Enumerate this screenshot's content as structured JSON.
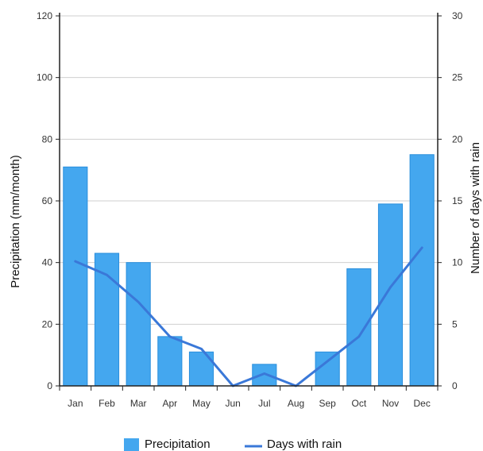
{
  "chart_data": {
    "type": "bar",
    "categories": [
      "Jan",
      "Feb",
      "Mar",
      "Apr",
      "May",
      "Jun",
      "Jul",
      "Aug",
      "Sep",
      "Oct",
      "Nov",
      "Dec"
    ],
    "series": [
      {
        "name": "Precipitation",
        "type": "bar",
        "axis": "left",
        "values": [
          71,
          43,
          40,
          16,
          11,
          0,
          7,
          0,
          11,
          38,
          59,
          75
        ]
      },
      {
        "name": "Days with rain",
        "type": "line",
        "axis": "right",
        "values": [
          10.1,
          9.0,
          6.8,
          4.0,
          3.0,
          0,
          1.0,
          0,
          2.0,
          4.0,
          8.0,
          11.2
        ]
      }
    ],
    "ylabel": "Precipitation (mm/month)",
    "y2label": "Number of days with rain",
    "ylim": [
      0,
      120
    ],
    "y2lim": [
      0,
      30
    ],
    "yticks": [
      "0",
      "20",
      "40",
      "60",
      "80",
      "100",
      "120"
    ],
    "y2ticks": [
      "0",
      "5",
      "10",
      "15",
      "20",
      "25",
      "30"
    ],
    "grid": true,
    "legend_position": "bottom",
    "colors": {
      "bar": "#44a7ef",
      "bar_edge": "#2a8fdc",
      "line": "#3a78d8",
      "grid": "#cfcfcf"
    }
  }
}
